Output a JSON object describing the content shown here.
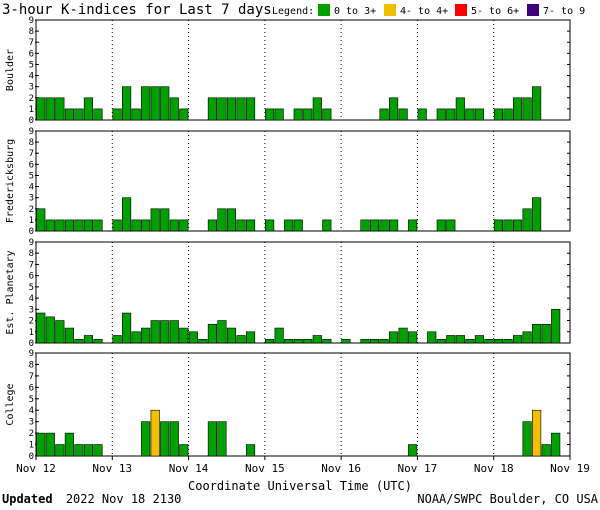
{
  "title": "3-hour K-indices for Last 7 days",
  "legend": {
    "label": "Legend:",
    "items": [
      {
        "label": "0 to 3+",
        "color": "#00a000"
      },
      {
        "label": "4- to 4+",
        "color": "#f0c000"
      },
      {
        "label": "5- to 6+",
        "color": "#ff0000"
      },
      {
        "label": "7- to 9",
        "color": "#400080"
      }
    ]
  },
  "xlabel": "Coordinate Universal Time (UTC)",
  "date_labels": [
    "Nov 12",
    "Nov 13",
    "Nov 14",
    "Nov 15",
    "Nov 16",
    "Nov 17",
    "Nov 18",
    "Nov 19"
  ],
  "y_ticks": [
    "0",
    "1",
    "2",
    "3",
    "4",
    "5",
    "6",
    "7",
    "8",
    "9"
  ],
  "footer": {
    "updated_label": "Updated",
    "updated_value": "2022 Nov 18 2130",
    "source": "NOAA/SWPC Boulder, CO USA"
  },
  "chart_data": [
    {
      "type": "bar",
      "ylabel": "Boulder",
      "ylim": [
        0,
        9
      ],
      "x": "3-hour intervals, Nov 12 00 UTC to Nov 19 00 UTC",
      "values": [
        2,
        2,
        2,
        1,
        1,
        2,
        1,
        0,
        1,
        3,
        1,
        3,
        3,
        3,
        2,
        1,
        0,
        0,
        2,
        2,
        2,
        2,
        2,
        0,
        1,
        1,
        0,
        1,
        1,
        2,
        1,
        0,
        0,
        0,
        0,
        0,
        1,
        2,
        1,
        0,
        1,
        0,
        1,
        1,
        2,
        1,
        1,
        0,
        1,
        1,
        2,
        2,
        3,
        0
      ]
    },
    {
      "type": "bar",
      "ylabel": "Fredericksburg",
      "ylim": [
        0,
        9
      ],
      "x": "3-hour intervals, Nov 12 00 UTC to Nov 19 00 UTC",
      "values": [
        2,
        1,
        1,
        1,
        1,
        1,
        1,
        0,
        1,
        3,
        1,
        1,
        2,
        2,
        1,
        1,
        0,
        0,
        1,
        2,
        2,
        1,
        1,
        0,
        1,
        0,
        1,
        1,
        0,
        0,
        1,
        0,
        0,
        0,
        1,
        1,
        1,
        1,
        0,
        1,
        0,
        0,
        1,
        1,
        0,
        0,
        0,
        0,
        1,
        1,
        1,
        2,
        3,
        0
      ]
    },
    {
      "type": "bar",
      "ylabel": "Est. Planetary",
      "ylim": [
        0,
        9
      ],
      "x": "3-hour intervals, Nov 12 00 UTC to Nov 19 00 UTC",
      "values": [
        2.67,
        2.33,
        2,
        1.33,
        0.33,
        0.67,
        0.33,
        0,
        0.67,
        2.67,
        1,
        1.33,
        2,
        2,
        2,
        1.33,
        1,
        0.33,
        1.67,
        2,
        1.33,
        0.67,
        1,
        0,
        0.33,
        1.33,
        0.33,
        0.33,
        0.33,
        0.67,
        0.33,
        0,
        0.33,
        0,
        0.33,
        0.33,
        0.33,
        1,
        1.33,
        1,
        0,
        1,
        0.33,
        0.67,
        0.67,
        0.33,
        0.67,
        0.33,
        0.33,
        0.33,
        0.67,
        1,
        1.67,
        1.67,
        3,
        0
      ]
    },
    {
      "type": "bar",
      "ylabel": "College",
      "ylim": [
        0,
        9
      ],
      "x": "3-hour intervals, Nov 12 00 UTC to Nov 19 00 UTC",
      "values": [
        2,
        2,
        1,
        2,
        1,
        1,
        1,
        0,
        0,
        0,
        0,
        3,
        4,
        3,
        3,
        1,
        0,
        0,
        3,
        3,
        0,
        0,
        1,
        0,
        0,
        0,
        0,
        0,
        0,
        0,
        0,
        0,
        0,
        0,
        0,
        0,
        0,
        0,
        0,
        1,
        0,
        0,
        0,
        0,
        0,
        0,
        0,
        0,
        0,
        0,
        0,
        3,
        4,
        1,
        2,
        0
      ]
    }
  ]
}
